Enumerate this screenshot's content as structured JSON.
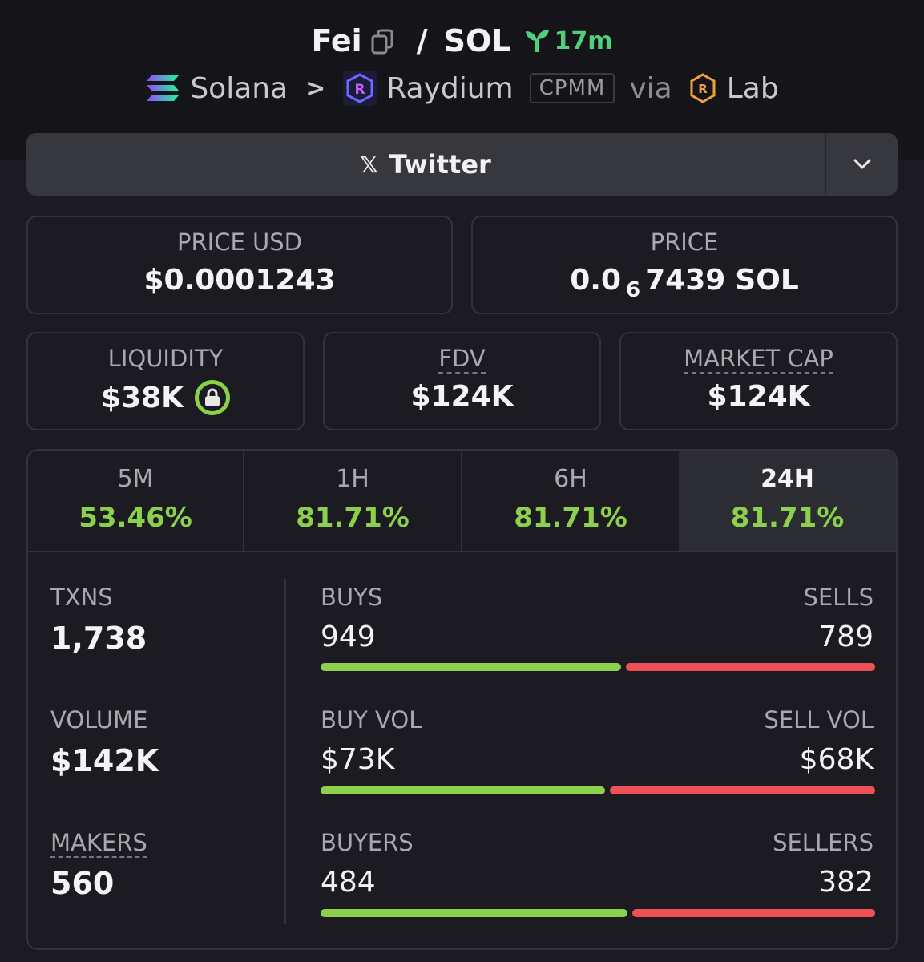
{
  "header": {
    "token": "Fei",
    "quote": "SOL",
    "age": "17m",
    "chain": "Solana",
    "dex": "Raydium",
    "pool_type": "CPMM",
    "via_label": "via",
    "launchpad": "Lab"
  },
  "twitter": {
    "label": "Twitter"
  },
  "price_usd": {
    "label": "PRICE USD",
    "value": "$0.0001243"
  },
  "price": {
    "label": "PRICE",
    "prefix": "0.0",
    "zeros": "6",
    "digits": "7439",
    "unit": "SOL"
  },
  "liquidity": {
    "label": "LIQUIDITY",
    "value": "$38K"
  },
  "fdv": {
    "label": "FDV",
    "value": "$124K"
  },
  "market_cap": {
    "label": "MARKET CAP",
    "value": "$124K"
  },
  "tabs": [
    {
      "label": "5M",
      "value": "53.46%"
    },
    {
      "label": "1H",
      "value": "81.71%"
    },
    {
      "label": "6H",
      "value": "81.71%"
    },
    {
      "label": "24H",
      "value": "81.71%"
    }
  ],
  "active_tab": "24H",
  "stats": {
    "txns": {
      "label": "TXNS",
      "value": "1,738"
    },
    "volume": {
      "label": "VOLUME",
      "value": "$142K"
    },
    "makers": {
      "label": "MAKERS",
      "value": "560"
    }
  },
  "splits": [
    {
      "left_label": "BUYS",
      "left_value": "949",
      "right_label": "SELLS",
      "right_value": "789",
      "buy_fraction": 0.546
    },
    {
      "left_label": "BUY VOL",
      "left_value": "$73K",
      "right_label": "SELL VOL",
      "right_value": "$68K",
      "buy_fraction": 0.518
    },
    {
      "left_label": "BUYERS",
      "left_value": "484",
      "right_label": "SELLERS",
      "right_value": "382",
      "buy_fraction": 0.559
    }
  ],
  "colors": {
    "positive": "#8dd04c",
    "negative": "#ee5057",
    "age": "#4fd07a"
  }
}
